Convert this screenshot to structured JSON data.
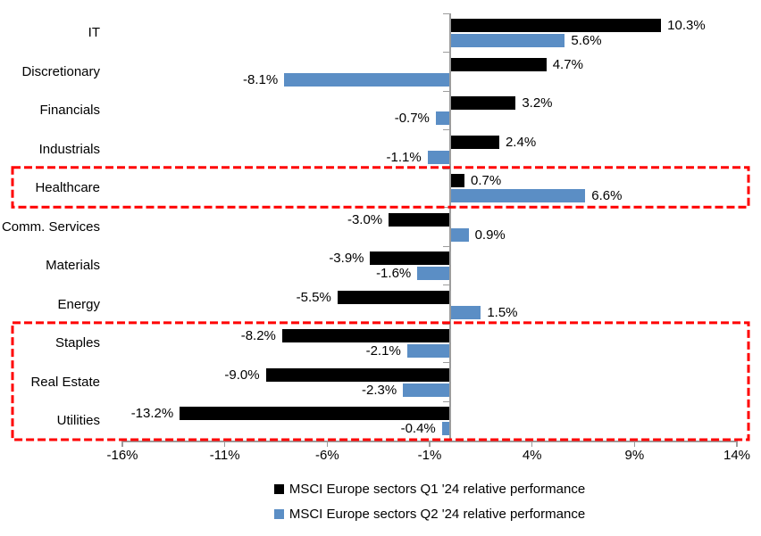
{
  "chart_data": {
    "type": "bar",
    "orientation": "horizontal",
    "categories": [
      "IT",
      "Discretionary",
      "Financials",
      "Industrials",
      "Healthcare",
      "Comm. Services",
      "Materials",
      "Energy",
      "Staples",
      "Real Estate",
      "Utilities"
    ],
    "series": [
      {
        "name": "MSCI Europe sectors Q1 '24 relative performance",
        "color": "#000000",
        "values": [
          10.3,
          4.7,
          3.2,
          2.4,
          0.7,
          -3.0,
          -3.9,
          -5.5,
          -8.2,
          -9.0,
          -13.2
        ],
        "labels": [
          "10.3%",
          "4.7%",
          "3.2%",
          "2.4%",
          "0.7%",
          "-3.0%",
          "-3.9%",
          "-5.5%",
          "-8.2%",
          "-9.0%",
          "-13.2%"
        ]
      },
      {
        "name": "MSCI Europe sectors Q2 '24 relative performance",
        "color": "#5B8EC5",
        "values": [
          5.6,
          -8.1,
          -0.7,
          -1.1,
          6.6,
          0.9,
          -1.6,
          1.5,
          -2.1,
          -2.3,
          -0.4
        ],
        "labels": [
          "5.6%",
          "-8.1%",
          "-0.7%",
          "-1.1%",
          "6.6%",
          "0.9%",
          "-1.6%",
          "1.5%",
          "-2.1%",
          "-2.3%",
          "-0.4%"
        ]
      }
    ],
    "x_axis": {
      "tick_labels": [
        "-16%",
        "-11%",
        "-6%",
        "-1%",
        "4%",
        "9%",
        "14%"
      ],
      "tick_values": [
        -16,
        -11,
        -6,
        -1,
        4,
        9,
        14
      ],
      "range": [
        -16,
        14
      ]
    },
    "grid": false,
    "legend_position": "bottom",
    "axis_color": "#9C9C9C",
    "highlight_boxes": [
      {
        "color": "#FF0000",
        "style": "dashed",
        "categories": [
          "Healthcare"
        ]
      },
      {
        "color": "#FF0000",
        "style": "dashed",
        "categories": [
          "Staples",
          "Real Estate",
          "Utilities"
        ]
      }
    ]
  }
}
